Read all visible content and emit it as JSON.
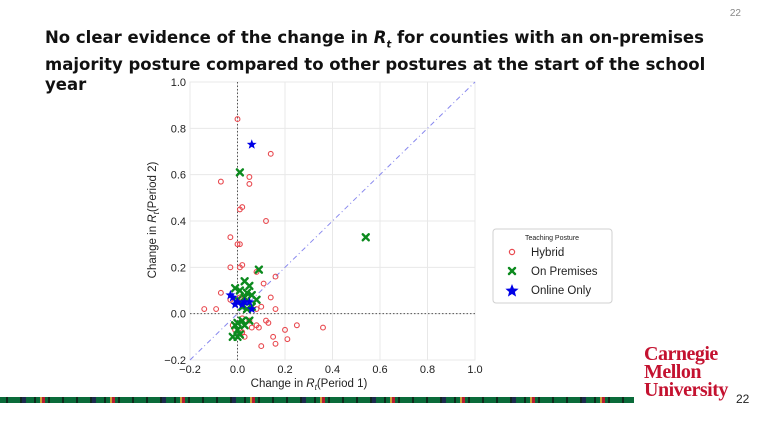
{
  "page": {
    "number_top": "22",
    "number_bottom": "22",
    "title_part1": "No clear evidence of the change in ",
    "title_symbol": "R",
    "title_subscript": "t",
    "title_part2": " for counties with an on-premises majority posture compared to other postures at the start of the school year"
  },
  "logo": {
    "line1": "Carnegie",
    "line2": "Mellon",
    "line3": "University"
  },
  "colors": {
    "hybrid": "#e8494f",
    "on_premises": "#0c8a1e",
    "online_only": "#0000e6",
    "diagonal": "#8888ee"
  },
  "chart_data": {
    "type": "scatter",
    "xlabel_prefix": "Change in ",
    "xlabel_symbol": "R",
    "xlabel_sub": "t",
    "xlabel_suffix": "(Period 1)",
    "ylabel_prefix": "Change in ",
    "ylabel_symbol": "R",
    "ylabel_sub": "t",
    "ylabel_suffix": "(Period 2)",
    "xlim": [
      -0.2,
      1.0
    ],
    "ylim": [
      -0.2,
      1.0
    ],
    "xticks": [
      "−0.2",
      "0.0",
      "0.2",
      "0.4",
      "0.6",
      "0.8",
      "1.0"
    ],
    "yticks": [
      "−0.2",
      "0.0",
      "0.2",
      "0.4",
      "0.6",
      "0.8",
      "1.0"
    ],
    "xtick_values": [
      -0.2,
      0.0,
      0.2,
      0.4,
      0.6,
      0.8,
      1.0
    ],
    "ytick_values": [
      -0.2,
      0.0,
      0.2,
      0.4,
      0.6,
      0.8,
      1.0
    ],
    "grid": true,
    "diagonal_line": true,
    "zero_lines": true,
    "legend": {
      "title": "Teaching Posture",
      "position": "right"
    },
    "series": [
      {
        "name": "Hybrid",
        "marker": "circle-open",
        "points": [
          [
            0.0,
            0.84
          ],
          [
            -0.07,
            0.57
          ],
          [
            0.14,
            0.69
          ],
          [
            0.05,
            0.59
          ],
          [
            0.05,
            0.56
          ],
          [
            0.01,
            0.45
          ],
          [
            0.02,
            0.46
          ],
          [
            0.12,
            0.4
          ],
          [
            -0.03,
            0.33
          ],
          [
            0.0,
            0.3
          ],
          [
            0.01,
            0.3
          ],
          [
            0.01,
            0.2
          ],
          [
            -0.03,
            0.2
          ],
          [
            0.02,
            0.21
          ],
          [
            0.08,
            0.18
          ],
          [
            0.16,
            0.16
          ],
          [
            -0.07,
            0.09
          ],
          [
            0.11,
            0.13
          ],
          [
            -0.03,
            0.06
          ],
          [
            0.01,
            0.07
          ],
          [
            0.04,
            0.05
          ],
          [
            0.14,
            0.07
          ],
          [
            -0.14,
            0.02
          ],
          [
            -0.09,
            0.02
          ],
          [
            0.08,
            0.02
          ],
          [
            0.1,
            0.03
          ],
          [
            0.16,
            0.02
          ],
          [
            0.02,
            -0.02
          ],
          [
            0.05,
            -0.03
          ],
          [
            0.12,
            -0.03
          ],
          [
            0.13,
            -0.04
          ],
          [
            0.08,
            -0.05
          ],
          [
            0.25,
            -0.05
          ],
          [
            0.36,
            -0.06
          ],
          [
            -0.02,
            -0.05
          ],
          [
            0.06,
            -0.06
          ],
          [
            0.09,
            -0.06
          ],
          [
            0.2,
            -0.07
          ],
          [
            0.02,
            -0.08
          ],
          [
            0.15,
            -0.1
          ],
          [
            0.21,
            -0.11
          ],
          [
            0.03,
            -0.1
          ],
          [
            0.16,
            -0.13
          ],
          [
            0.1,
            -0.14
          ],
          [
            -0.01,
            -0.07
          ]
        ]
      },
      {
        "name": "On Premises",
        "marker": "x",
        "points": [
          [
            0.01,
            0.61
          ],
          [
            0.54,
            0.33
          ],
          [
            0.09,
            0.19
          ],
          [
            0.03,
            0.14
          ],
          [
            0.05,
            0.12
          ],
          [
            -0.01,
            0.11
          ],
          [
            0.01,
            0.1
          ],
          [
            0.04,
            0.09
          ],
          [
            0.06,
            0.08
          ],
          [
            0.03,
            0.07
          ],
          [
            0.08,
            0.06
          ],
          [
            0.0,
            0.06
          ],
          [
            0.02,
            0.03
          ],
          [
            0.06,
            0.03
          ],
          [
            0.04,
            0.02
          ],
          [
            0.0,
            -0.04
          ],
          [
            -0.01,
            -0.05
          ],
          [
            0.02,
            -0.03
          ],
          [
            0.05,
            -0.03
          ],
          [
            0.03,
            -0.05
          ],
          [
            0.0,
            -0.07
          ],
          [
            0.01,
            -0.09
          ],
          [
            -0.02,
            -0.1
          ],
          [
            0.0,
            -0.1
          ]
        ]
      },
      {
        "name": "Online Only",
        "marker": "star",
        "points": [
          [
            0.06,
            0.73
          ],
          [
            -0.02,
            0.07
          ],
          [
            0.0,
            0.05
          ],
          [
            -0.01,
            0.04
          ],
          [
            0.02,
            0.04
          ],
          [
            0.05,
            0.05
          ],
          [
            0.06,
            0.02
          ],
          [
            0.03,
            0.05
          ],
          [
            -0.03,
            0.08
          ]
        ]
      }
    ]
  }
}
